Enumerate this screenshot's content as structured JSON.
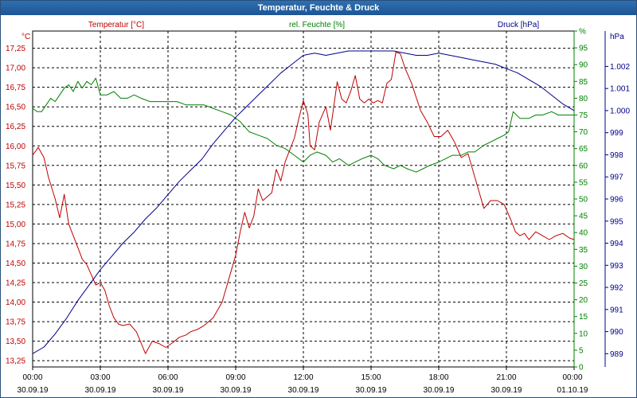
{
  "window": {
    "title": "Temperatur, Feuchte & Druck"
  },
  "colors": {
    "temperature": "#c00000",
    "humidity": "#008000",
    "pressure": "#00008b",
    "grid": "#000000"
  },
  "chart_data": {
    "type": "line",
    "title": "Temperatur, Feuchte & Druck",
    "x_ticks": [
      {
        "h": 0,
        "time": "00:00",
        "date": "30.09.19"
      },
      {
        "h": 3,
        "time": "03:00",
        "date": "30.09.19"
      },
      {
        "h": 6,
        "time": "06:00",
        "date": "30.09.19"
      },
      {
        "h": 9,
        "time": "09:00",
        "date": "30.09.19"
      },
      {
        "h": 12,
        "time": "12:00",
        "date": "30.09.19"
      },
      {
        "h": 15,
        "time": "15:00",
        "date": "30.09.19"
      },
      {
        "h": 18,
        "time": "18:00",
        "date": "30.09.19"
      },
      {
        "h": 21,
        "time": "21:00",
        "date": "30.09.19"
      },
      {
        "h": 24,
        "time": "00:00",
        "date": "01.10.19"
      }
    ],
    "xlim": [
      0,
      24
    ],
    "axes": {
      "temperature": {
        "label": "Temperatur [°C]",
        "unit": "°C",
        "ylim": [
          13.17,
          17.47
        ],
        "ticks": [
          "13,25",
          "13,50",
          "13,75",
          "14,00",
          "14,25",
          "14,50",
          "14,75",
          "15,00",
          "15,25",
          "15,50",
          "15,75",
          "16,00",
          "16,25",
          "16,50",
          "16,75",
          "17,00",
          "17,25"
        ],
        "tick_values": [
          13.25,
          13.5,
          13.75,
          14.0,
          14.25,
          14.5,
          14.75,
          15.0,
          15.25,
          15.5,
          15.75,
          16.0,
          16.25,
          16.5,
          16.75,
          17.0,
          17.25
        ]
      },
      "humidity": {
        "label": "rel. Feuchte [%]",
        "unit": "%",
        "ylim": [
          0,
          100
        ],
        "ticks": [
          "0",
          "5",
          "10",
          "15",
          "20",
          "25",
          "30",
          "35",
          "40",
          "45",
          "50",
          "55",
          "60",
          "65",
          "70",
          "75",
          "80",
          "85",
          "90",
          "95",
          "%"
        ],
        "tick_values": [
          0,
          5,
          10,
          15,
          20,
          25,
          30,
          35,
          40,
          45,
          50,
          55,
          60,
          65,
          70,
          75,
          80,
          85,
          90,
          95,
          100
        ]
      },
      "pressure": {
        "label": "Druck [hPa]",
        "unit": "hPa",
        "ylim": [
          988.4,
          1003.6
        ],
        "ticks": [
          "989",
          "990",
          "991",
          "992",
          "993",
          "994",
          "995",
          "996",
          "997",
          "998",
          "999",
          "1.000",
          "1.001",
          "1.002"
        ],
        "tick_values": [
          989,
          990,
          991,
          992,
          993,
          994,
          995,
          996,
          997,
          998,
          999,
          1000,
          1001,
          1002
        ]
      }
    },
    "series": [
      {
        "name": "Temperatur [°C]",
        "axis": "temperature",
        "x": [
          0,
          0.25,
          0.5,
          0.7,
          1.0,
          1.2,
          1.4,
          1.6,
          1.8,
          2.0,
          2.2,
          2.4,
          2.6,
          2.8,
          3.0,
          3.2,
          3.4,
          3.6,
          3.8,
          4.0,
          4.3,
          4.6,
          5.0,
          5.3,
          5.6,
          5.9,
          6.2,
          6.5,
          6.8,
          7.0,
          7.3,
          7.6,
          8.0,
          8.4,
          8.8,
          9.0,
          9.2,
          9.4,
          9.6,
          9.8,
          10.0,
          10.2,
          10.4,
          10.6,
          10.8,
          11.0,
          11.2,
          11.4,
          11.6,
          11.8,
          12.0,
          12.2,
          12.3,
          12.5,
          12.7,
          13.0,
          13.2,
          13.5,
          13.7,
          13.9,
          14.1,
          14.3,
          14.5,
          14.7,
          14.9,
          15.1,
          15.3,
          15.5,
          15.7,
          15.9,
          16.1,
          16.3,
          16.5,
          16.8,
          17.0,
          17.2,
          17.5,
          17.8,
          18.1,
          18.4,
          18.7,
          19.0,
          19.3,
          19.6,
          20.0,
          20.3,
          20.6,
          20.9,
          21.2,
          21.4,
          21.6,
          21.8,
          22.0,
          22.3,
          22.6,
          22.9,
          23.2,
          23.5,
          23.8,
          24.0
        ],
        "values": [
          15.88,
          15.98,
          15.85,
          15.6,
          15.32,
          15.08,
          15.38,
          15.0,
          14.85,
          14.7,
          14.55,
          14.48,
          14.35,
          14.22,
          14.25,
          14.15,
          13.95,
          13.8,
          13.72,
          13.7,
          13.72,
          13.62,
          13.34,
          13.5,
          13.47,
          13.42,
          13.48,
          13.55,
          13.58,
          13.62,
          13.65,
          13.7,
          13.8,
          14.0,
          14.4,
          14.6,
          14.9,
          15.15,
          14.95,
          15.1,
          15.45,
          15.3,
          15.35,
          15.4,
          15.7,
          15.55,
          15.8,
          15.95,
          16.1,
          16.35,
          16.58,
          16.4,
          16.0,
          15.95,
          16.3,
          16.5,
          16.2,
          16.82,
          16.6,
          16.55,
          16.7,
          16.9,
          16.6,
          16.55,
          16.6,
          16.55,
          16.58,
          16.55,
          16.8,
          16.85,
          17.2,
          17.18,
          17.0,
          16.8,
          16.62,
          16.45,
          16.3,
          16.12,
          16.12,
          16.2,
          16.05,
          15.85,
          15.9,
          15.6,
          15.2,
          15.3,
          15.3,
          15.25,
          15.05,
          14.9,
          14.85,
          14.88,
          14.8,
          14.9,
          14.85,
          14.8,
          14.85,
          14.88,
          14.82,
          14.8
        ]
      },
      {
        "name": "rel. Feuchte [%]",
        "axis": "humidity",
        "x": [
          0,
          0.2,
          0.4,
          0.6,
          0.8,
          1.0,
          1.2,
          1.4,
          1.6,
          1.8,
          2.0,
          2.2,
          2.4,
          2.6,
          2.8,
          3.0,
          3.3,
          3.6,
          3.9,
          4.2,
          4.5,
          4.8,
          5.2,
          5.6,
          6.0,
          6.4,
          6.8,
          7.2,
          7.6,
          8.0,
          8.4,
          8.8,
          9.2,
          9.6,
          10.0,
          10.4,
          10.8,
          11.2,
          11.6,
          12.0,
          12.3,
          12.6,
          13.0,
          13.3,
          13.6,
          14.0,
          14.3,
          14.6,
          15.0,
          15.3,
          15.6,
          16.0,
          16.3,
          16.6,
          17.0,
          17.3,
          17.6,
          18.0,
          18.3,
          18.6,
          19.0,
          19.3,
          19.6,
          20.0,
          20.3,
          20.6,
          20.9,
          21.1,
          21.3,
          21.6,
          22.0,
          22.3,
          22.6,
          23.0,
          23.3,
          23.6,
          24.0
        ],
        "values": [
          77,
          76,
          76,
          78,
          80,
          79,
          81,
          83,
          84,
          82,
          85,
          83,
          85,
          84,
          86,
          81,
          81,
          82,
          80,
          80,
          81,
          80,
          79,
          79,
          79,
          79,
          78,
          78,
          78,
          77,
          76,
          75,
          73,
          70,
          69,
          68,
          66,
          65,
          63,
          61,
          63,
          64,
          63,
          61,
          62,
          60,
          61,
          62,
          63,
          62,
          60,
          59,
          60,
          59,
          58,
          59,
          60,
          61,
          62,
          63,
          63,
          64,
          64,
          66,
          67,
          68,
          69,
          70,
          76,
          74,
          74,
          75,
          75,
          76,
          75,
          75,
          75
        ]
      },
      {
        "name": "Druck [hPa]",
        "axis": "pressure",
        "x": [
          0,
          0.5,
          1.0,
          1.5,
          2.0,
          2.5,
          3.0,
          3.5,
          4.0,
          4.5,
          5.0,
          5.5,
          6.0,
          6.5,
          7.0,
          7.5,
          8.0,
          8.5,
          9.0,
          9.5,
          10.0,
          10.5,
          11.0,
          11.5,
          12.0,
          12.5,
          13.0,
          13.5,
          14.0,
          14.5,
          15.0,
          15.5,
          16.0,
          16.5,
          17.0,
          17.5,
          18.0,
          18.5,
          19.0,
          19.5,
          20.0,
          20.5,
          21.0,
          21.5,
          22.0,
          22.5,
          23.0,
          23.5,
          24.0
        ],
        "values": [
          989.0,
          989.3,
          989.9,
          990.6,
          991.4,
          992.1,
          992.8,
          993.4,
          994.0,
          994.5,
          995.1,
          995.6,
          996.2,
          996.8,
          997.3,
          997.8,
          998.5,
          999.1,
          999.7,
          1000.2,
          1000.7,
          1001.2,
          1001.7,
          1002.1,
          1002.5,
          1002.6,
          1002.5,
          1002.6,
          1002.7,
          1002.7,
          1002.7,
          1002.7,
          1002.7,
          1002.6,
          1002.5,
          1002.5,
          1002.6,
          1002.5,
          1002.4,
          1002.3,
          1002.2,
          1002.1,
          1001.9,
          1001.7,
          1001.4,
          1001.1,
          1000.7,
          1000.3,
          1000.0
        ]
      }
    ]
  }
}
